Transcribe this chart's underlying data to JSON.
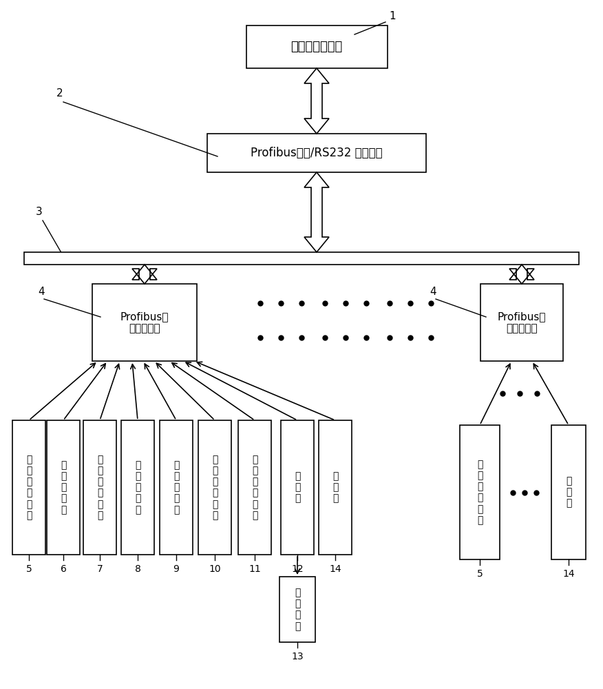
{
  "bg_color": "#ffffff",
  "fig_w": 8.76,
  "fig_h": 10.0,
  "dpi": 100,
  "node1_text": "监控中心上位机",
  "node2_text": "Profibus总线/RS232 转换模块",
  "left_term_text": "Profibus总\n线控制终端",
  "right_term_text": "Profibus总\n线控制终端",
  "sensors": [
    "温\n度\n传\n感\n器\n一",
    "压\n力\n传\n感\n器",
    "温\n度\n传\n感\n器\n二",
    "流\n量\n传\n感\n器",
    "液\n位\n传\n感\n器",
    "温\n度\n传\n感\n器\n三",
    "电\n导\n率\n传\n感\n器",
    "变\n频\n器",
    "电\n磁\n阀"
  ],
  "sensor_nums": [
    "5",
    "6",
    "7",
    "8",
    "9",
    "10",
    "11",
    "12",
    "14"
  ],
  "cooler_text": "冷\n却\n水\n泵",
  "cooler_num": "13",
  "right_sensor_text": "温\n度\n传\n感\n器\n一",
  "right_valve_text": "电\n磁\n阀",
  "right_device_nums": [
    "5",
    "14"
  ],
  "label1": "1",
  "label2": "2",
  "label3": "3",
  "label4": "4",
  "label12": "12",
  "label14_center": "14"
}
